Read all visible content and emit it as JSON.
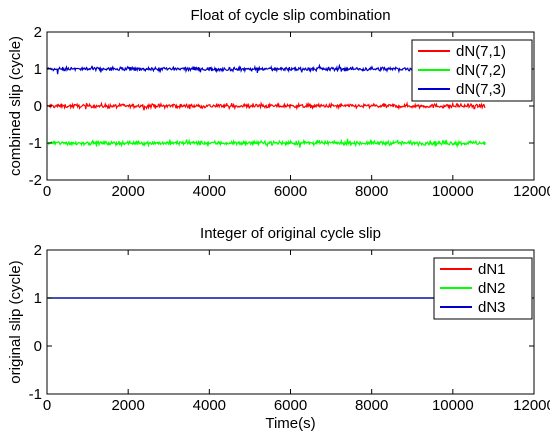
{
  "chart_data": [
    {
      "type": "line",
      "title": "Float of cycle slip combination",
      "xlabel": "",
      "ylabel": "combined slip (cycle)",
      "xlim": [
        0,
        12000
      ],
      "ylim": [
        -2,
        2
      ],
      "xticks": [
        "0",
        "2000",
        "4000",
        "6000",
        "8000",
        "10000",
        "12000"
      ],
      "yticks": [
        "2",
        "1",
        "0",
        "-1",
        "-2"
      ],
      "x_range": [
        0,
        10800
      ],
      "legend_position": "top-right",
      "series": [
        {
          "name": "dN(7,1)",
          "color": "#ff0000",
          "level": 0,
          "noise": 0.05
        },
        {
          "name": "dN(7,2)",
          "color": "#00ff00",
          "level": -1,
          "noise": 0.05
        },
        {
          "name": "dN(7,3)",
          "color": "#0000cc",
          "level": 1,
          "noise": 0.05
        }
      ]
    },
    {
      "type": "line",
      "title": "Integer of original cycle slip",
      "xlabel": "Time(s)",
      "ylabel": "original slip (cycle)",
      "xlim": [
        0,
        12000
      ],
      "ylim": [
        -1,
        2
      ],
      "xticks": [
        "0",
        "2000",
        "4000",
        "6000",
        "8000",
        "10000",
        "12000"
      ],
      "yticks": [
        "2",
        "1",
        "0",
        "-1"
      ],
      "x_range": [
        0,
        10800
      ],
      "legend_position": "top-right",
      "series": [
        {
          "name": "dN1",
          "color": "#ff0000",
          "level": 1,
          "noise": 0
        },
        {
          "name": "dN2",
          "color": "#00ff00",
          "level": 1,
          "noise": 0
        },
        {
          "name": "dN3",
          "color": "#0000cc",
          "level": 1,
          "noise": 0
        }
      ]
    }
  ]
}
